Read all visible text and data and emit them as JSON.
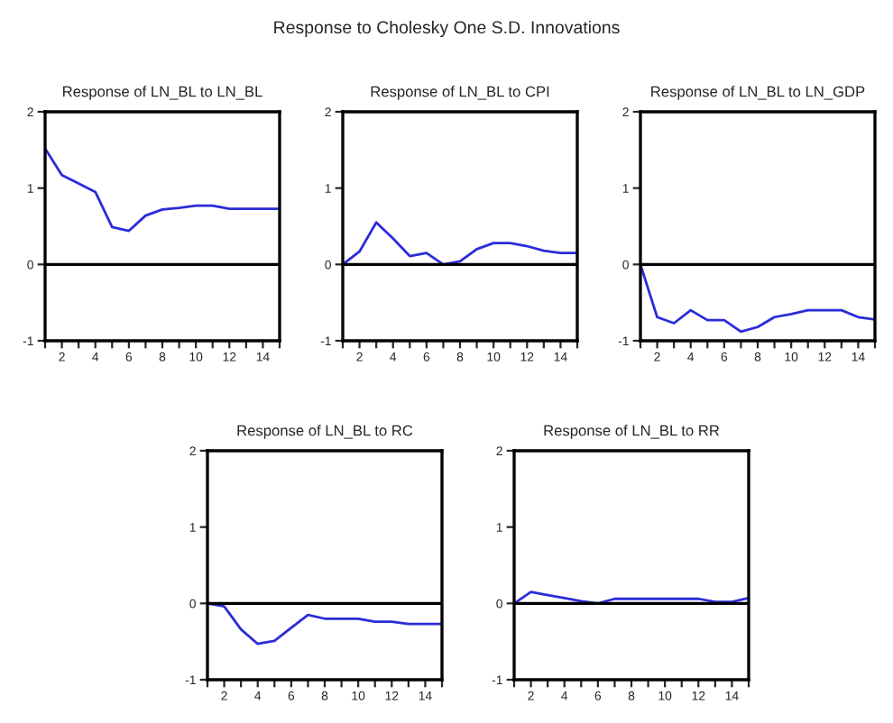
{
  "chart_data": [
    {
      "type": "line",
      "title": "Response of LN_BL to LN_BL",
      "annotations": [
        "Response to Cholesky One S.D. Innovations"
      ],
      "x": [
        1,
        2,
        3,
        4,
        5,
        6,
        7,
        8,
        9,
        10,
        11,
        12,
        13,
        14,
        15
      ],
      "series": [
        {
          "color": "#2b2bd9",
          "values": [
            1.52,
            1.17,
            1.06,
            0.95,
            0.49,
            0.44,
            0.64,
            0.72,
            0.74,
            0.77,
            0.77,
            0.73,
            0.73,
            0.73,
            0.73
          ]
        }
      ],
      "xlim": [
        1,
        15
      ],
      "ylim": [
        -1,
        2
      ],
      "yticks": [
        -1,
        0,
        1,
        2
      ],
      "xticks": [
        {
          "value": 1,
          "label": null
        },
        2,
        {
          "value": 3,
          "label": null
        },
        4,
        {
          "value": 5,
          "label": null
        },
        6,
        {
          "value": 7,
          "label": null
        },
        8,
        {
          "value": 9,
          "label": null
        },
        10,
        {
          "value": 11,
          "label": null
        },
        12,
        {
          "value": 13,
          "label": null
        },
        14,
        {
          "value": 15,
          "label": null
        }
      ],
      "ref_lines": [
        {
          "axis": "y",
          "value": 0,
          "color": "#000000"
        }
      ],
      "grid": false,
      "legend": false
    },
    {
      "type": "line",
      "title": "Response of LN_BL to CPI",
      "x": [
        1,
        2,
        3,
        4,
        5,
        6,
        7,
        8,
        9,
        10,
        11,
        12,
        13,
        14,
        15
      ],
      "series": [
        {
          "color": "#2b2bd9",
          "values": [
            0,
            0.17,
            0.55,
            0.34,
            0.11,
            0.15,
            0,
            0.04,
            0.2,
            0.28,
            0.28,
            0.24,
            0.18,
            0.15,
            0.15
          ]
        }
      ],
      "xlim": [
        1,
        15
      ],
      "ylim": [
        -1,
        2
      ],
      "yticks": [
        -1,
        0,
        1,
        2
      ],
      "xticks": [
        {
          "value": 1,
          "label": null
        },
        2,
        {
          "value": 3,
          "label": null
        },
        4,
        {
          "value": 5,
          "label": null
        },
        6,
        {
          "value": 7,
          "label": null
        },
        8,
        {
          "value": 9,
          "label": null
        },
        10,
        {
          "value": 11,
          "label": null
        },
        12,
        {
          "value": 13,
          "label": null
        },
        14,
        {
          "value": 15,
          "label": null
        }
      ],
      "ref_lines": [
        {
          "axis": "y",
          "value": 0,
          "color": "#000000"
        }
      ],
      "grid": false,
      "legend": false
    },
    {
      "type": "line",
      "title": "Response of LN_BL to LN_GDP",
      "x": [
        1,
        2,
        3,
        4,
        5,
        6,
        7,
        8,
        9,
        10,
        11,
        12,
        13,
        14,
        15
      ],
      "series": [
        {
          "color": "#2b2bd9",
          "values": [
            0,
            -0.69,
            -0.77,
            -0.6,
            -0.73,
            -0.73,
            -0.88,
            -0.82,
            -0.69,
            -0.65,
            -0.6,
            -0.6,
            -0.6,
            -0.69,
            -0.72
          ]
        }
      ],
      "xlim": [
        1,
        15
      ],
      "ylim": [
        -1,
        2
      ],
      "yticks": [
        -1,
        0,
        1,
        2
      ],
      "xticks": [
        {
          "value": 1,
          "label": null
        },
        2,
        {
          "value": 3,
          "label": null
        },
        4,
        {
          "value": 5,
          "label": null
        },
        6,
        {
          "value": 7,
          "label": null
        },
        8,
        {
          "value": 9,
          "label": null
        },
        10,
        {
          "value": 11,
          "label": null
        },
        12,
        {
          "value": 13,
          "label": null
        },
        14,
        {
          "value": 15,
          "label": null
        }
      ],
      "ref_lines": [
        {
          "axis": "y",
          "value": 0,
          "color": "#000000"
        }
      ],
      "grid": false,
      "legend": false
    },
    {
      "type": "line",
      "title": "Response of LN_BL to RC",
      "x": [
        1,
        2,
        3,
        4,
        5,
        6,
        7,
        8,
        9,
        10,
        11,
        12,
        13,
        14,
        15
      ],
      "series": [
        {
          "color": "#2b2bd9",
          "values": [
            0,
            -0.04,
            -0.34,
            -0.53,
            -0.49,
            -0.32,
            -0.15,
            -0.2,
            -0.2,
            -0.2,
            -0.24,
            -0.24,
            -0.27,
            -0.27,
            -0.27
          ]
        }
      ],
      "xlim": [
        1,
        15
      ],
      "ylim": [
        -1,
        2
      ],
      "yticks": [
        -1,
        0,
        1,
        2
      ],
      "xticks": [
        {
          "value": 1,
          "label": null
        },
        2,
        {
          "value": 3,
          "label": null
        },
        4,
        {
          "value": 5,
          "label": null
        },
        6,
        {
          "value": 7,
          "label": null
        },
        8,
        {
          "value": 9,
          "label": null
        },
        10,
        {
          "value": 11,
          "label": null
        },
        12,
        {
          "value": 13,
          "label": null
        },
        14,
        {
          "value": 15,
          "label": null
        }
      ],
      "ref_lines": [
        {
          "axis": "y",
          "value": 0,
          "color": "#000000"
        }
      ],
      "grid": false,
      "legend": false
    },
    {
      "type": "line",
      "title": "Response of LN_BL to RR",
      "x": [
        1,
        2,
        3,
        4,
        5,
        6,
        7,
        8,
        9,
        10,
        11,
        12,
        13,
        14,
        15
      ],
      "series": [
        {
          "color": "#2b2bd9",
          "values": [
            0,
            0.15,
            0.11,
            0.07,
            0.03,
            0,
            0.06,
            0.06,
            0.06,
            0.06,
            0.06,
            0.06,
            0.02,
            0.02,
            0.07
          ]
        }
      ],
      "xlim": [
        1,
        15
      ],
      "ylim": [
        -1,
        2
      ],
      "yticks": [
        -1,
        0,
        1,
        2
      ],
      "xticks": [
        {
          "value": 1,
          "label": null
        },
        2,
        {
          "value": 3,
          "label": null
        },
        4,
        {
          "value": 5,
          "label": null
        },
        6,
        {
          "value": 7,
          "label": null
        },
        8,
        {
          "value": 9,
          "label": null
        },
        10,
        {
          "value": 11,
          "label": null
        },
        12,
        {
          "value": 13,
          "label": null
        },
        14,
        {
          "value": 15,
          "label": null
        }
      ],
      "ref_lines": [
        {
          "axis": "y",
          "value": 0,
          "color": "#000000"
        }
      ],
      "grid": false,
      "legend": false
    }
  ]
}
